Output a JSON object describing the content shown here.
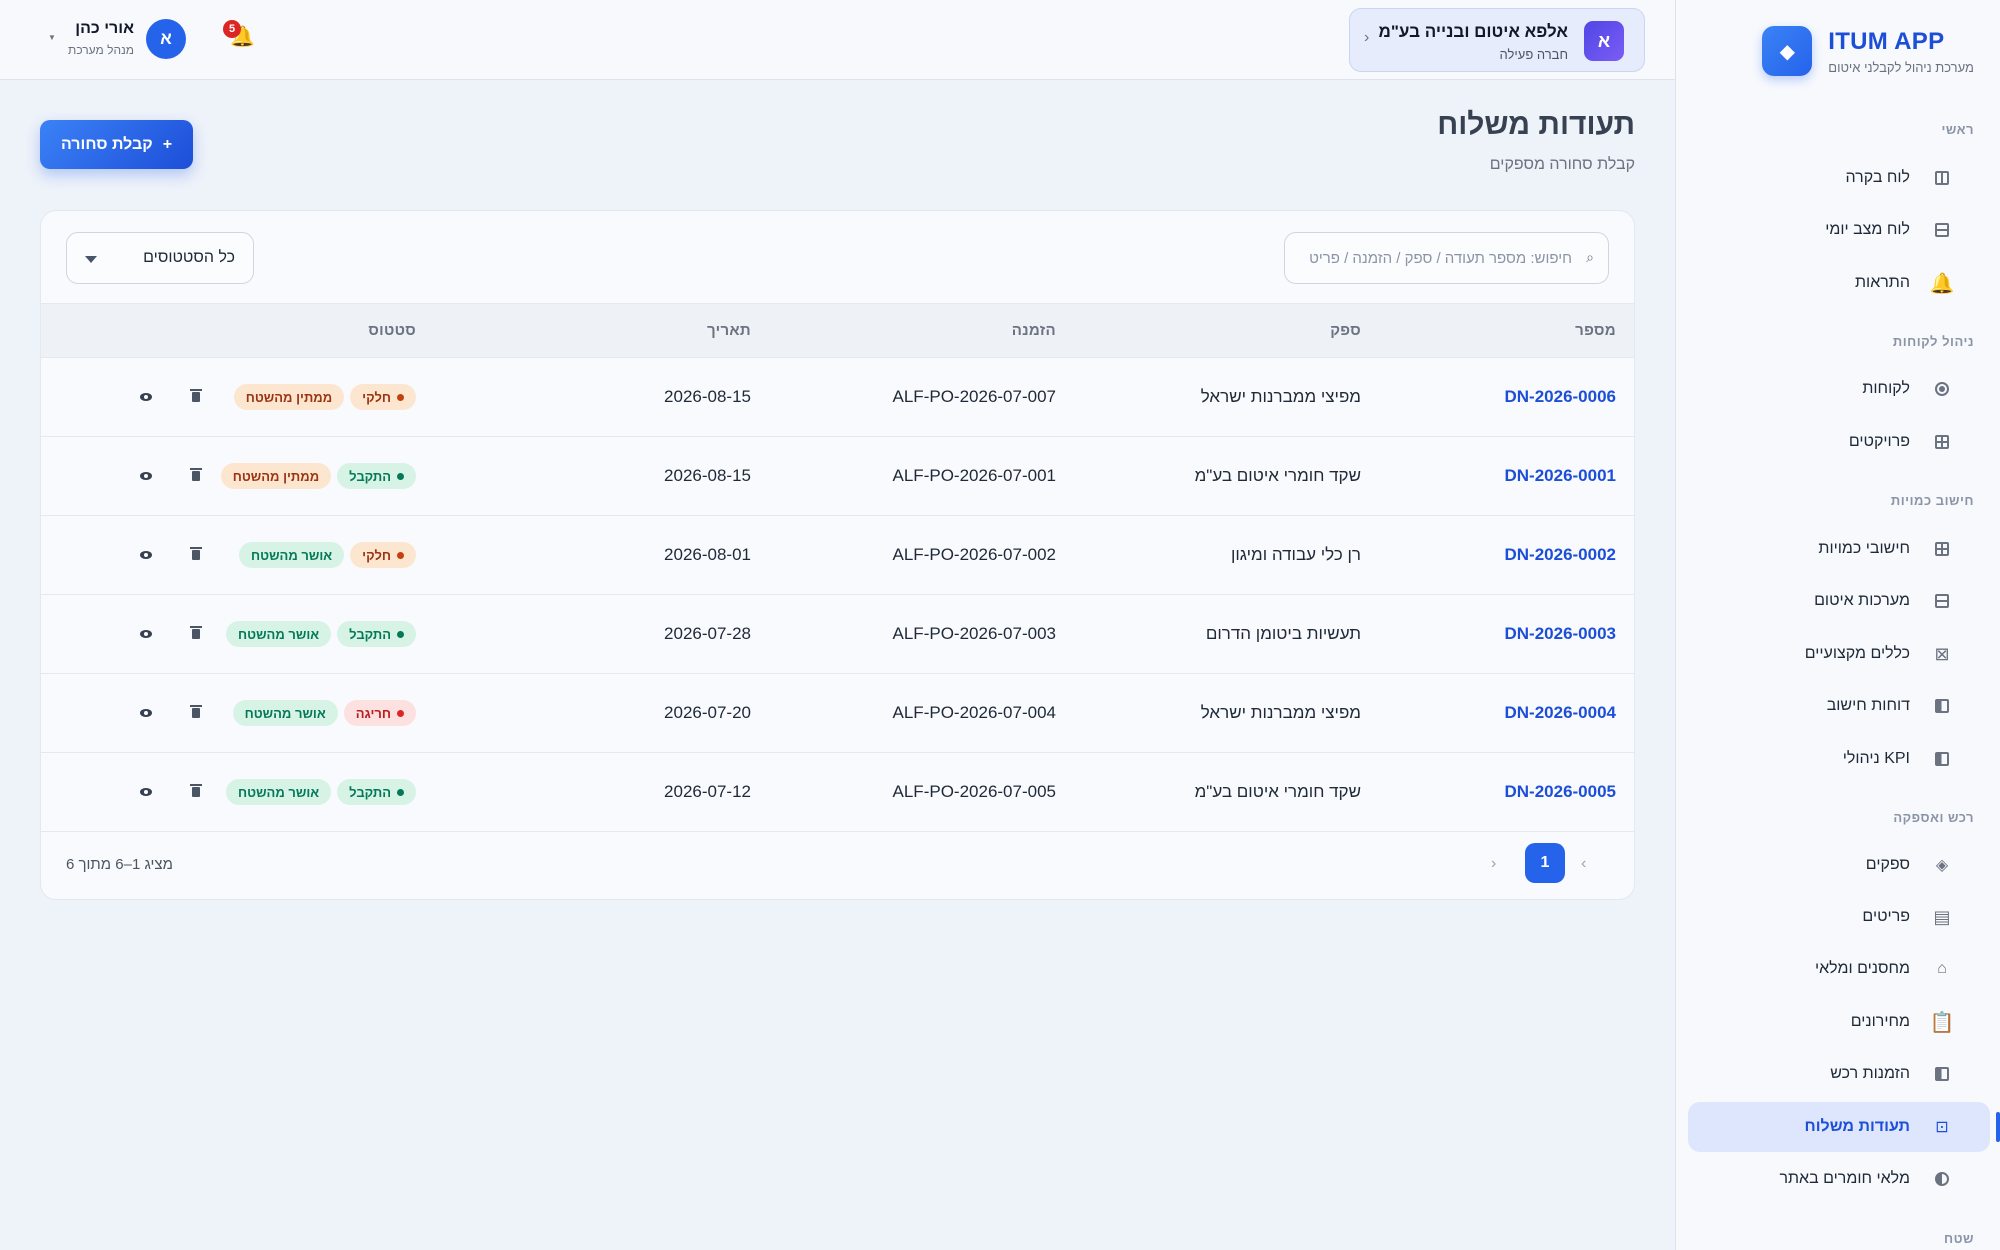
{
  "brand": {
    "name": "ITUM APP",
    "subtitle": "מערכת ניהול לקבלני איטום",
    "logo_icon": "diamond"
  },
  "sidebar": {
    "sections": [
      {
        "title": "ראשי"
      },
      {
        "title": "ניהול לקוחות"
      },
      {
        "title": "חישוב כמויות"
      },
      {
        "title": "רכש ואספקה"
      },
      {
        "title": "שטח"
      }
    ],
    "items": [
      {
        "label": "לוח בקרה",
        "icon": "layout-icon"
      },
      {
        "label": "לוח מצב יומי",
        "icon": "calendar-icon"
      },
      {
        "label": "התראות",
        "icon": "bell-icon"
      },
      {
        "label": "לקוחות",
        "icon": "customers-icon"
      },
      {
        "label": "פרויקטים",
        "icon": "projects-icon"
      },
      {
        "label": "חישובי כמויות",
        "icon": "grid-icon"
      },
      {
        "label": "מערכות איטום",
        "icon": "layers-icon"
      },
      {
        "label": "כללים מקצועיים",
        "icon": "rules-icon"
      },
      {
        "label": "דוחות חישוב",
        "icon": "report-icon"
      },
      {
        "label": "KPI ניהולי",
        "icon": "kpi-icon"
      },
      {
        "label": "ספקים",
        "icon": "suppliers-icon"
      },
      {
        "label": "פריטים",
        "icon": "items-icon"
      },
      {
        "label": "מחסנים ומלאי",
        "icon": "warehouse-icon"
      },
      {
        "label": "מחירונים",
        "icon": "clipboard-icon"
      },
      {
        "label": "הזמנות רכש",
        "icon": "purchase-icon"
      },
      {
        "label": "תעודות משלוח",
        "icon": "delivery-icon",
        "active": true
      },
      {
        "label": "מלאי חומרים באתר",
        "icon": "site-stock-icon"
      }
    ]
  },
  "topbar": {
    "company": {
      "initial": "א",
      "name": "אלפא איטום ובנייה בע\"מ",
      "status": "חברה פעילה"
    },
    "notifications": {
      "count": "5"
    },
    "user": {
      "initial": "א",
      "name": "אורי כהן",
      "role": "מנהל מערכת"
    }
  },
  "page": {
    "title": "תעודות משלוח",
    "subtitle": "קבלת סחורה מספקים",
    "primary_button": "קבלת סחורה",
    "primary_button_icon": "+"
  },
  "filters": {
    "search_placeholder": "חיפוש: מספר תעודה / ספק / הזמנה / פריט",
    "status_select": "כל הסטטוסים"
  },
  "table": {
    "headers": {
      "number": "מספר",
      "supplier": "ספק",
      "order": "הזמנה",
      "date": "תאריך",
      "status": "סטטוס"
    },
    "rows": [
      {
        "number": "DN-2026-0006",
        "supplier": "מפיצי ממברנות ישראל",
        "order": "ALF-PO-2026-07-007",
        "date": "2026-08-15",
        "status": "חלקי",
        "status_kind": "partial",
        "approval": "ממתין מהשטח",
        "approval_kind": "pending"
      },
      {
        "number": "DN-2026-0001",
        "supplier": "שקד חומרי איטום בע\"מ",
        "order": "ALF-PO-2026-07-001",
        "date": "2026-08-15",
        "status": "התקבל",
        "status_kind": "received",
        "approval": "ממתין מהשטח",
        "approval_kind": "pending"
      },
      {
        "number": "DN-2026-0002",
        "supplier": "רן כלי עבודה ומיגון",
        "order": "ALF-PO-2026-07-002",
        "date": "2026-08-01",
        "status": "חלקי",
        "status_kind": "partial",
        "approval": "אושר מהשטח",
        "approval_kind": "approved"
      },
      {
        "number": "DN-2026-0003",
        "supplier": "תעשיות ביטומן הדרום",
        "order": "ALF-PO-2026-07-003",
        "date": "2026-07-28",
        "status": "התקבל",
        "status_kind": "received",
        "approval": "אושר מהשטח",
        "approval_kind": "approved"
      },
      {
        "number": "DN-2026-0004",
        "supplier": "מפיצי ממברנות ישראל",
        "order": "ALF-PO-2026-07-004",
        "date": "2026-07-20",
        "status": "חריגה",
        "status_kind": "exception",
        "approval": "אושר מהשטח",
        "approval_kind": "approved"
      },
      {
        "number": "DN-2026-0005",
        "supplier": "שקד חומרי איטום בע\"מ",
        "order": "ALF-PO-2026-07-005",
        "date": "2026-07-12",
        "status": "התקבל",
        "status_kind": "received",
        "approval": "אושר מהשטח",
        "approval_kind": "approved"
      }
    ]
  },
  "pagination": {
    "current": "1",
    "info": "מציג 1–6 מתוך 6",
    "prev": "‹",
    "next": "›"
  },
  "colors": {
    "accent": "#2563eb",
    "accent_dark": "#1d4ed8",
    "background": "#eef2f9"
  }
}
